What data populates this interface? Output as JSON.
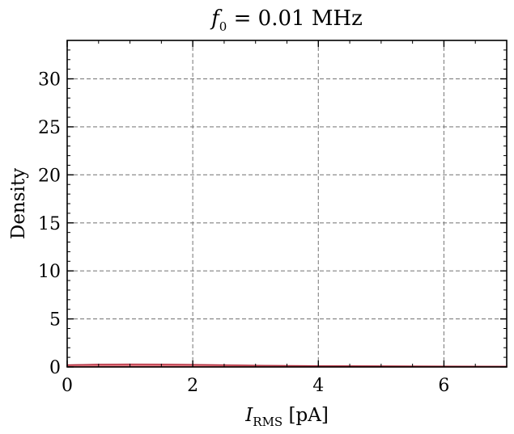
{
  "chart_data": {
    "type": "area",
    "title": {
      "italic": "f",
      "subscript": "0",
      "rest": " = 0.01 MHz"
    },
    "xlabel": {
      "italic": "I",
      "subscript": "RMS",
      "rest": " [pA]"
    },
    "ylabel": "Density",
    "xlim": [
      0,
      7
    ],
    "ylim": [
      0,
      34
    ],
    "xticks": [
      0,
      2,
      4,
      6
    ],
    "yticks": [
      0,
      5,
      10,
      15,
      20,
      25,
      30
    ],
    "grid": true,
    "series": [
      {
        "color": "#e06470",
        "x": [
          0,
          0.5,
          1.0,
          1.5,
          2.0,
          2.5,
          3.0,
          3.5,
          4.0,
          4.5,
          5.0,
          5.5,
          6.0,
          6.5,
          7.0
        ],
        "y": [
          0.2,
          0.26,
          0.28,
          0.27,
          0.24,
          0.2,
          0.16,
          0.13,
          0.11,
          0.1,
          0.09,
          0.08,
          0.07,
          0.06,
          0.05
        ]
      }
    ]
  }
}
